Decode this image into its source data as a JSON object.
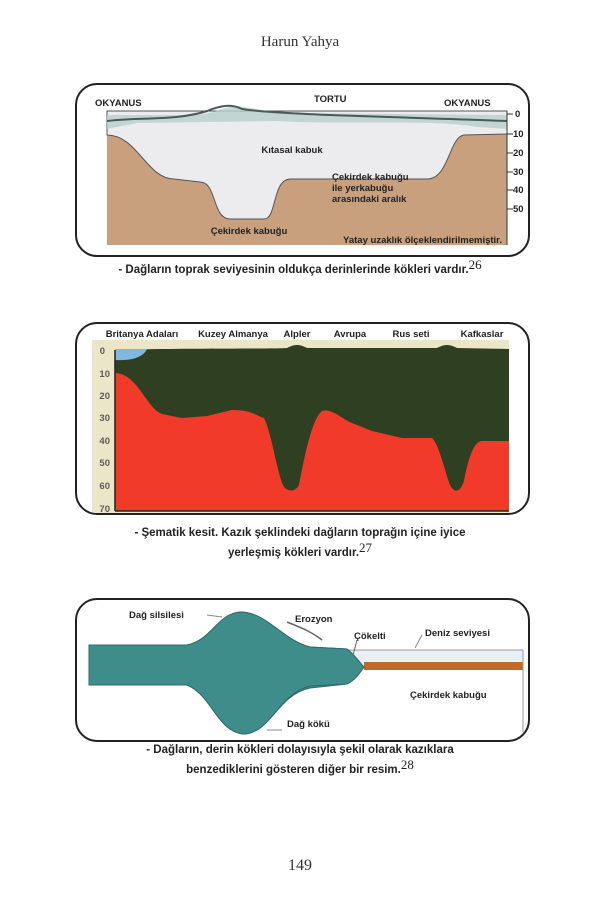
{
  "header": {
    "title": "Harun Yahya"
  },
  "figure1": {
    "labels": {
      "ocean_left": "OKYANUS",
      "sediment": "TORTU",
      "ocean_right": "OKYANUS",
      "continental_crust": "Kıtasal kabuk",
      "gap_line1": "Çekirdek kabuğu",
      "gap_line2": "ile yerkabuğu",
      "gap_line3": "arasındaki aralık",
      "core_crust": "Çekirdek kabuğu",
      "note": "Yatay uzaklık ölçeklendirilmemiştir."
    },
    "scale": [
      "0",
      "10",
      "20",
      "30",
      "40",
      "50"
    ],
    "caption": "- Dağların toprak seviyesinin oldukça derinlerinde kökleri vardır.",
    "footnote": "26"
  },
  "figure2": {
    "regions": [
      "Britanya Adaları",
      "Kuzey Almanya",
      "Alpler",
      "Avrupa",
      "Rus seti",
      "Kafkaslar"
    ],
    "scale": [
      "0",
      "10",
      "20",
      "30",
      "40",
      "50",
      "60",
      "70"
    ],
    "caption_line1": "- Şematik kesit. Kazık şeklindeki dağların toprağın içine iyice",
    "caption_line2": "yerleşmiş kökleri vardır.",
    "footnote": "27",
    "colors": {
      "crust": "#2f3f22",
      "mantle": "#f23a2a",
      "sea": "#7fb8e0"
    }
  },
  "figure3": {
    "labels": {
      "range": "Dağ silsilesi",
      "erosion": "Erozyon",
      "sediment": "Çökelti",
      "sea_level": "Deniz seviyesi",
      "core_crust": "Çekirdek kabuğu",
      "root": "Dağ kökü"
    },
    "caption_line1": "- Dağların, derin kökleri dolayısıyla şekil olarak kazıklara",
    "caption_line2": "benzediklerini gösteren diğer bir resim.",
    "footnote": "28"
  },
  "footer": {
    "page_number": "149"
  }
}
